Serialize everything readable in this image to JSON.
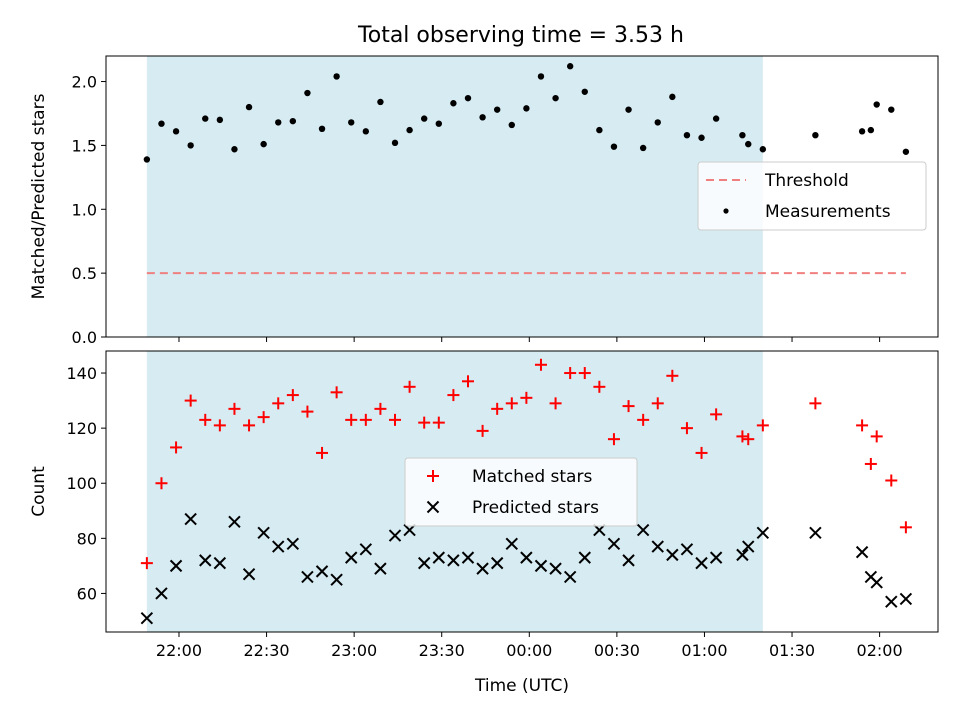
{
  "title": "Total observing time = 3.53 h",
  "colors": {
    "shade": "#add8e6",
    "threshold": "#f08080",
    "measurement": "#000000",
    "matched": "#ff0000",
    "predicted": "#000000"
  },
  "chart_data": [
    {
      "type": "scatter",
      "panel": "top",
      "title": "Total observing time = 3.53 h",
      "ylabel": "Matched/Predicted stars",
      "ylim": [
        0.0,
        2.2
      ],
      "yticks": [
        0.0,
        0.5,
        1.0,
        1.5,
        2.0
      ],
      "ytick_labels": [
        "0.0",
        "0.5",
        "1.0",
        "1.5",
        "2.0"
      ],
      "xlim": [
        "21:35",
        "02:20"
      ],
      "shaded_span": [
        "21:49",
        "01:20"
      ],
      "legend": {
        "position": "center-right",
        "entries": [
          "Threshold",
          "Measurements"
        ]
      },
      "series": [
        {
          "name": "Threshold",
          "style": "dashed-line",
          "x": [
            "21:49",
            "02:09"
          ],
          "y": [
            0.5,
            0.5
          ]
        },
        {
          "name": "Measurements",
          "style": "dot",
          "x": [
            "21:49",
            "21:54",
            "21:59",
            "22:04",
            "22:09",
            "22:14",
            "22:19",
            "22:24",
            "22:29",
            "22:34",
            "22:39",
            "22:44",
            "22:49",
            "22:54",
            "22:59",
            "23:04",
            "23:09",
            "23:14",
            "23:19",
            "23:24",
            "23:29",
            "23:34",
            "23:39",
            "23:44",
            "23:49",
            "23:54",
            "23:59",
            "00:04",
            "00:09",
            "00:14",
            "00:19",
            "00:24",
            "00:29",
            "00:34",
            "00:39",
            "00:44",
            "00:49",
            "00:54",
            "00:59",
            "01:04",
            "01:13",
            "01:15",
            "01:20",
            "01:38",
            "01:54",
            "01:57",
            "01:59",
            "02:04",
            "02:09"
          ],
          "y": [
            1.39,
            1.67,
            1.61,
            1.5,
            1.71,
            1.7,
            1.47,
            1.8,
            1.51,
            1.68,
            1.69,
            1.91,
            1.63,
            2.04,
            1.68,
            1.61,
            1.84,
            1.52,
            1.62,
            1.71,
            1.67,
            1.83,
            1.87,
            1.72,
            1.78,
            1.66,
            1.79,
            2.04,
            1.87,
            2.12,
            1.92,
            1.62,
            1.49,
            1.78,
            1.48,
            1.68,
            1.88,
            1.58,
            1.56,
            1.71,
            1.58,
            1.51,
            1.47,
            1.58,
            1.61,
            1.62,
            1.82,
            1.78,
            1.45
          ]
        }
      ]
    },
    {
      "type": "scatter",
      "panel": "bottom",
      "xlabel": "Time (UTC)",
      "ylabel": "Count",
      "ylim": [
        46,
        148
      ],
      "yticks": [
        60,
        80,
        100,
        120,
        140
      ],
      "ytick_labels": [
        "60",
        "80",
        "100",
        "120",
        "140"
      ],
      "xlim": [
        "21:35",
        "02:20"
      ],
      "xticks": [
        "22:00",
        "22:30",
        "23:00",
        "23:30",
        "00:00",
        "00:30",
        "01:00",
        "01:30",
        "02:00"
      ],
      "xtick_labels": [
        "22:00",
        "22:30",
        "23:00",
        "23:30",
        "00:00",
        "00:30",
        "01:00",
        "01:30",
        "02:00"
      ],
      "shaded_span": [
        "21:49",
        "01:20"
      ],
      "legend": {
        "position": "center",
        "entries": [
          "Matched stars",
          "Predicted stars"
        ]
      },
      "series": [
        {
          "name": "Matched stars",
          "marker": "+",
          "x": [
            "21:49",
            "21:54",
            "21:59",
            "22:04",
            "22:09",
            "22:14",
            "22:19",
            "22:24",
            "22:29",
            "22:34",
            "22:39",
            "22:44",
            "22:49",
            "22:54",
            "22:59",
            "23:04",
            "23:09",
            "23:14",
            "23:19",
            "23:24",
            "23:29",
            "23:34",
            "23:39",
            "23:44",
            "23:49",
            "23:54",
            "23:59",
            "00:04",
            "00:09",
            "00:14",
            "00:19",
            "00:24",
            "00:29",
            "00:34",
            "00:39",
            "00:44",
            "00:49",
            "00:54",
            "00:59",
            "01:04",
            "01:13",
            "01:15",
            "01:20",
            "01:38",
            "01:54",
            "01:57",
            "01:59",
            "02:04",
            "02:09"
          ],
          "y": [
            71,
            100,
            113,
            130,
            123,
            121,
            127,
            121,
            124,
            129,
            132,
            126,
            111,
            133,
            123,
            123,
            127,
            123,
            135,
            122,
            122,
            132,
            137,
            119,
            127,
            129,
            131,
            143,
            129,
            140,
            140,
            135,
            116,
            128,
            123,
            129,
            139,
            120,
            111,
            125,
            117,
            116,
            121,
            129,
            121,
            107,
            117,
            101,
            84
          ]
        },
        {
          "name": "Predicted stars",
          "marker": "x",
          "x": [
            "21:49",
            "21:54",
            "21:59",
            "22:04",
            "22:09",
            "22:14",
            "22:19",
            "22:24",
            "22:29",
            "22:34",
            "22:39",
            "22:44",
            "22:49",
            "22:54",
            "22:59",
            "23:04",
            "23:09",
            "23:14",
            "23:19",
            "23:24",
            "23:29",
            "23:34",
            "23:39",
            "23:44",
            "23:49",
            "23:54",
            "23:59",
            "00:04",
            "00:09",
            "00:14",
            "00:19",
            "00:24",
            "00:29",
            "00:34",
            "00:39",
            "00:44",
            "00:49",
            "00:54",
            "00:59",
            "01:04",
            "01:13",
            "01:15",
            "01:20",
            "01:38",
            "01:54",
            "01:57",
            "01:59",
            "02:04",
            "02:09"
          ],
          "y": [
            51,
            60,
            70,
            87,
            72,
            71,
            86,
            67,
            82,
            77,
            78,
            66,
            68,
            65,
            73,
            76,
            69,
            81,
            83,
            71,
            73,
            72,
            73,
            69,
            71,
            78,
            73,
            70,
            69,
            66,
            73,
            83,
            78,
            72,
            83,
            77,
            74,
            76,
            71,
            73,
            74,
            77,
            82,
            82,
            75,
            66,
            64,
            57,
            58
          ]
        }
      ]
    }
  ]
}
